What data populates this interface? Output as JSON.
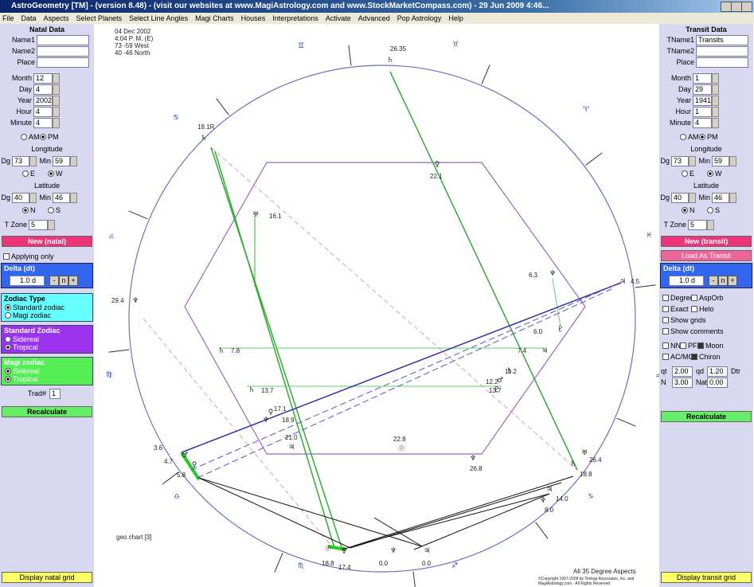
{
  "title_bar": "AstroGeometry [TM] - (version 8.48) - (visit our websites at www.MagiAstrology.com and www.StockMarketCompass.com) - 29 Jun 2009   4:46...",
  "menu": [
    "File",
    "Data",
    "Aspects",
    "Select Planets",
    "Select Line Angles",
    "Magi Charts",
    "Houses",
    "Interpretations",
    "Activate",
    "Advanced",
    "Pop Astrology",
    "Help"
  ],
  "natal": {
    "heading": "Natal Data",
    "text_fields": [
      {
        "label": "Name1"
      },
      {
        "label": "Name2"
      },
      {
        "label": "Place"
      }
    ],
    "spin_fields": [
      {
        "label": "Month",
        "value": "12"
      },
      {
        "label": "Day",
        "value": "4"
      },
      {
        "label": "Year",
        "value": "2002"
      },
      {
        "label": "Hour",
        "value": "4"
      },
      {
        "label": "Minute",
        "value": "4"
      }
    ],
    "ampm": [
      {
        "label": "AM"
      },
      {
        "label": "PM",
        "selected": true
      }
    ],
    "longitude": {
      "heading": "Longitude",
      "dg_label": "Dg",
      "dg": "73",
      "min_label": "Min",
      "min": "59",
      "options": [
        {
          "label": "E"
        },
        {
          "label": "W",
          "selected": true
        }
      ]
    },
    "latitude": {
      "heading": "Latitude",
      "dg_label": "Dg",
      "dg": "40",
      "min_label": "Min",
      "min": "46",
      "options": [
        {
          "label": "N",
          "selected": true
        },
        {
          "label": "S"
        }
      ]
    },
    "tzone": {
      "label": "T Zone",
      "value": "5"
    },
    "new_button": "New (natal)",
    "applying_only": "Applying only",
    "delta": {
      "heading": "Delta (dt)",
      "value": "1.0 d",
      "buttons": [
        "-",
        "n",
        "+"
      ]
    },
    "zodiac_type": {
      "heading": "Zodiac Type",
      "options": [
        {
          "label": "Standard zodiac",
          "selected": true
        },
        {
          "label": "Magi zodiac"
        }
      ]
    },
    "standard_zodiac": {
      "heading": "Standard Zodiac",
      "options": [
        {
          "label": "Sidereal"
        },
        {
          "label": "Tropical",
          "selected": true
        }
      ]
    },
    "magi_zodiac": {
      "heading": "Magi zodiac",
      "options": [
        {
          "label": "Sidereal",
          "selected": true
        },
        {
          "label": "Tropical",
          "selected": true
        }
      ]
    },
    "trad": {
      "label": "Trad#",
      "value": "1"
    },
    "recalculate": "Recalculate",
    "grid_button": "Display natal grid"
  },
  "transit": {
    "heading": "Transit Data",
    "text_fields": [
      {
        "label": "TName1",
        "value": "Transits"
      },
      {
        "label": "TName2"
      },
      {
        "label": "Place"
      }
    ],
    "spin_fields": [
      {
        "label": "Month",
        "value": "1"
      },
      {
        "label": "Day",
        "value": "29"
      },
      {
        "label": "Year",
        "value": "1941"
      },
      {
        "label": "Hour",
        "value": "1"
      },
      {
        "label": "Minute",
        "value": "4"
      }
    ],
    "ampm": [
      {
        "label": "AM"
      },
      {
        "label": "PM",
        "selected": true
      }
    ],
    "longitude": {
      "heading": "Longitude",
      "dg_label": "Dg",
      "dg": "73",
      "min_label": "Min",
      "min": "59",
      "options": [
        {
          "label": "E"
        },
        {
          "label": "W",
          "selected": true
        }
      ]
    },
    "latitude": {
      "heading": "Latitude",
      "dg_label": "Dg",
      "dg": "40",
      "min_label": "Min",
      "min": "46",
      "options": [
        {
          "label": "N",
          "selected": true
        },
        {
          "label": "S"
        }
      ]
    },
    "tzone": {
      "label": "T Zone",
      "value": "5"
    },
    "new_button": "New (transit)",
    "load_button": "Load As Transit",
    "delta": {
      "heading": "Delta (dt)",
      "value": "1.0 d",
      "buttons": [
        "-",
        "n",
        "+"
      ]
    },
    "checks": [
      [
        {
          "label": "Degrees"
        },
        {
          "label": "AspOrb"
        }
      ],
      [
        {
          "label": "Exact"
        },
        {
          "label": "Helo"
        }
      ],
      [
        {
          "label": "Show grids"
        }
      ],
      [
        {
          "label": "Show comments"
        }
      ],
      [
        {
          "label": "NN"
        },
        {
          "label": "PF"
        },
        {
          "label": "Moon",
          "checked": true
        }
      ],
      [
        {
          "label": "AC/MC"
        },
        {
          "label": "Chiron",
          "checked": true
        }
      ]
    ],
    "orbs": [
      [
        {
          "label": "qt",
          "value": "2.00"
        },
        {
          "label": "qd",
          "value": "1.20"
        },
        {
          "label": "Dtr"
        }
      ],
      [
        {
          "label": "N",
          "value": "3.00"
        },
        {
          "label": "Nat",
          "value": "0.00"
        }
      ]
    ],
    "recalculate": "Recalculate",
    "grid_button": "Display transit grid"
  },
  "chart": {
    "info": [
      "04 Dec 2002",
      "4:04 P. M. (E)",
      "73 -59 West",
      "40 -46 North"
    ],
    "signs": [
      "♊",
      "♉",
      "♈",
      "♋",
      "♌",
      "♓",
      "♍",
      "♒",
      "♎",
      "♑",
      "♏",
      "♐"
    ],
    "planets": [
      "♄",
      "♄",
      "♅",
      "♀",
      "♃",
      "♆",
      "♆",
      "♇",
      "♄",
      "♃",
      "♄",
      "♂",
      "♇",
      "♄",
      "♀",
      "♆",
      "♃",
      "☉",
      "♂",
      "♀",
      "♆",
      "♅",
      "♄",
      "♃",
      "♆",
      "☉",
      "♀",
      "♆",
      "♃"
    ],
    "degrees": [
      "26.35",
      "18.1R",
      "22.1",
      "16.1",
      "6.3",
      "4.5",
      "29.4",
      "6.0",
      "7.8",
      "7.4",
      "11.2",
      "12.2",
      "13.7",
      "13.7",
      "17.1",
      "18.9",
      "21.0",
      "22.8",
      "3.6",
      "4.7",
      "5.8",
      "26.8",
      "26.4",
      "18.8",
      "14.0",
      "8.0",
      "18.8",
      "17.4",
      "0.0",
      "0.0"
    ],
    "footer_left": "geo chart [3]",
    "footer_right": "All 35 Degree Aspects",
    "copyright": [
      "©Copyright 1997-2009 by Tenkap Associates, Inc. and",
      "MagiAstrology.com - All Rights Reserved"
    ]
  }
}
